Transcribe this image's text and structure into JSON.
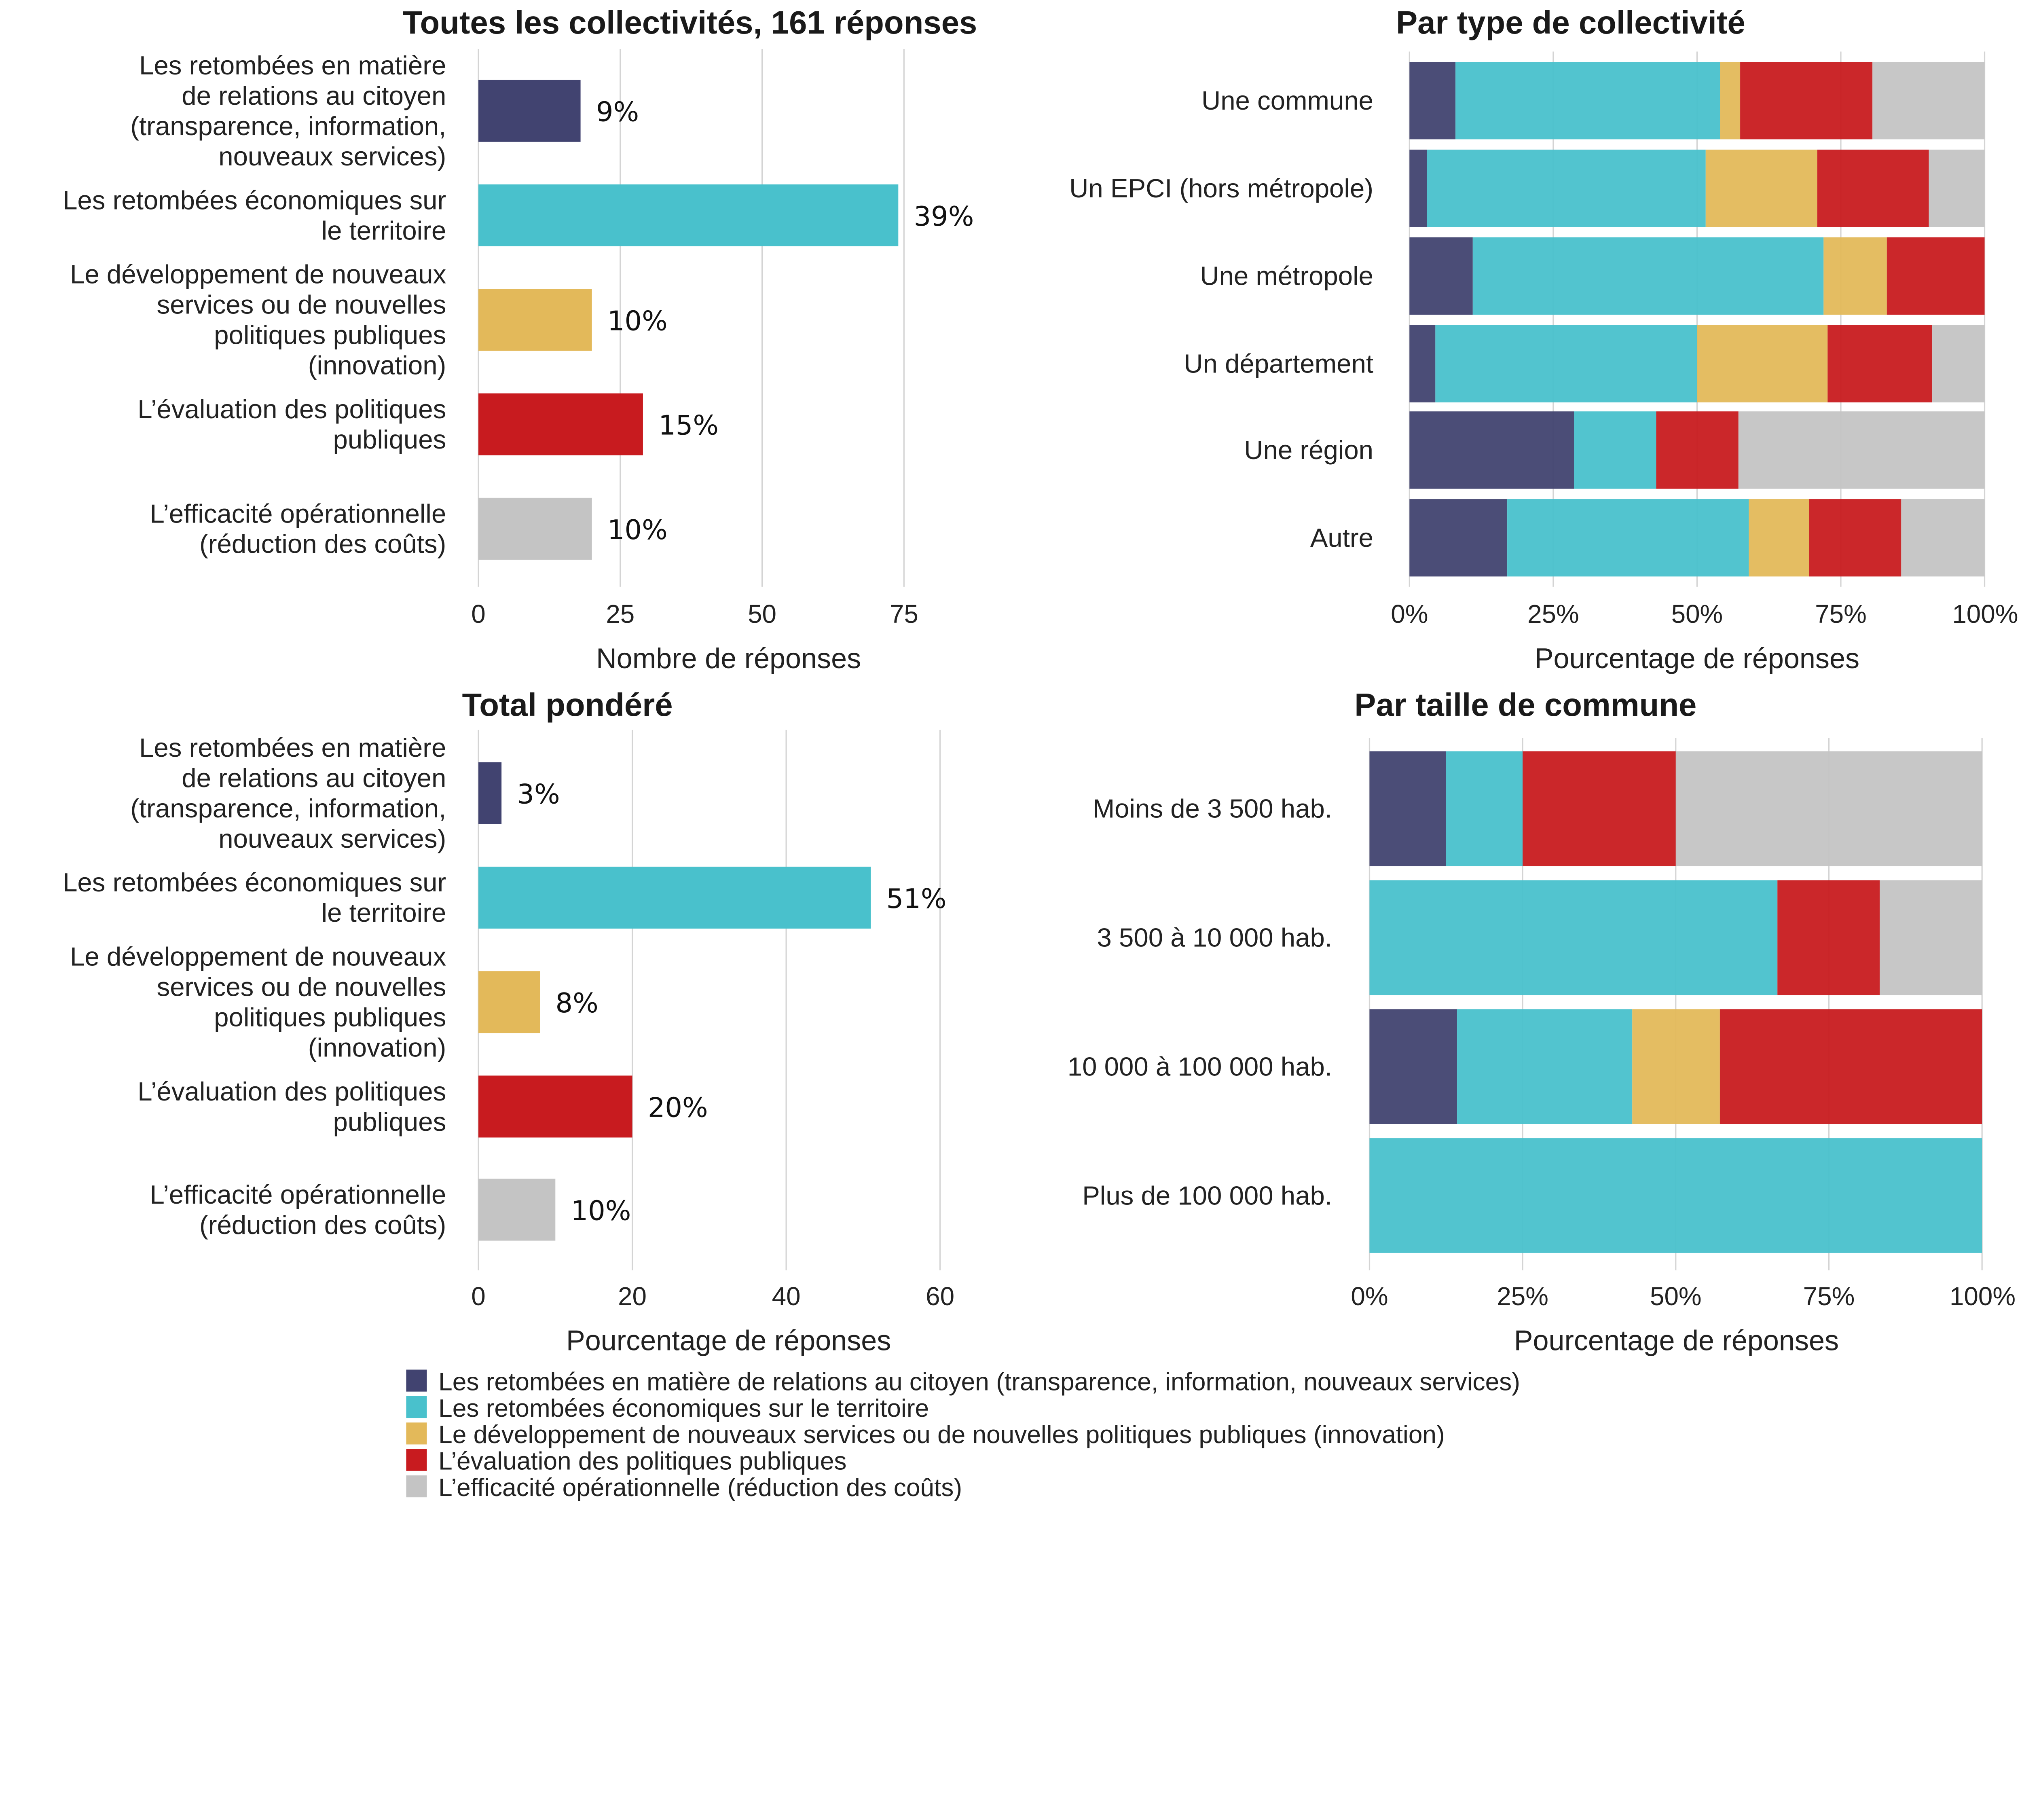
{
  "colors": {
    "citoyen": "#414370",
    "economie": "#49c1cc",
    "innovation": "#e3b95a",
    "evaluation": "#c81b1f",
    "efficacite": "#c4c4c4",
    "grid": "#d4d4d4"
  },
  "chart_data": [
    {
      "type": "bar",
      "orientation": "horizontal",
      "title": "Toutes les collectivités, 161 réponses",
      "xlabel": "Nombre de réponses",
      "categories": [
        [
          "Les retombées en matière",
          "de relations au citoyen",
          "(transparence, information,",
          "nouveaux services)"
        ],
        [
          "Les retombées économiques sur",
          "le territoire"
        ],
        [
          "Le développement de nouveaux",
          "services ou de nouvelles",
          "politiques publiques",
          "(innovation)"
        ],
        [
          "L’évaluation des politiques",
          "publiques"
        ],
        [
          "L’efficacité opérationnelle",
          "(réduction des coûts)"
        ]
      ],
      "values": [
        18,
        74,
        20,
        29,
        20
      ],
      "data_labels": [
        "9%",
        "39%",
        "10%",
        "15%",
        "10%"
      ],
      "xlim": [
        0,
        88
      ],
      "xticks": [
        0,
        25,
        50,
        75
      ],
      "xtick_labels": [
        "0",
        "25",
        "50",
        "75"
      ],
      "grid": true
    },
    {
      "type": "bar",
      "orientation": "horizontal",
      "stacked": true,
      "title": "Par type de collectivité",
      "xlabel": "Pourcentage de réponses",
      "categories": [
        "Une commune",
        "Un EPCI (hors métropole)",
        "Une métropole",
        "Un département",
        "Une région",
        "Autre"
      ],
      "series": [
        {
          "values": [
            8,
            3,
            11,
            4.5,
            28.6,
            17
          ]
        },
        {
          "values": [
            46,
            48.5,
            61,
            45.5,
            14.3,
            42
          ]
        },
        {
          "values": [
            3.5,
            19.4,
            11,
            22.7,
            0,
            10.5
          ]
        },
        {
          "values": [
            23,
            19.4,
            17,
            18.2,
            14.3,
            16
          ]
        },
        {
          "values": [
            19.5,
            9.7,
            0,
            9.1,
            42.8,
            14.5
          ]
        }
      ],
      "xlim": [
        0,
        100
      ],
      "xticks": [
        0,
        25,
        50,
        75,
        100
      ],
      "xtick_labels": [
        "0%",
        "25%",
        "50%",
        "75%",
        "100%"
      ],
      "grid": true
    },
    {
      "type": "bar",
      "orientation": "horizontal",
      "title": "Total pondéré",
      "xlabel": "Pourcentage de réponses",
      "categories": [
        [
          "Les retombées en matière",
          "de relations au citoyen",
          "(transparence, information,",
          "nouveaux services)"
        ],
        [
          "Les retombées économiques sur",
          "le territoire"
        ],
        [
          "Le développement de nouveaux",
          "services ou de nouvelles",
          "politiques publiques",
          "(innovation)"
        ],
        [
          "L’évaluation des politiques",
          "publiques"
        ],
        [
          "L’efficacité opérationnelle",
          "(réduction des coûts)"
        ]
      ],
      "values": [
        3,
        51,
        8,
        20,
        10
      ],
      "data_labels": [
        "3%",
        "51%",
        "8%",
        "20%",
        "10%"
      ],
      "xlim": [
        0,
        66
      ],
      "xticks": [
        0,
        20,
        40,
        60
      ],
      "xtick_labels": [
        "0",
        "20",
        "40",
        "60"
      ],
      "grid": true
    },
    {
      "type": "bar",
      "orientation": "horizontal",
      "stacked": true,
      "title": "Par taille de commune",
      "xlabel": "Pourcentage de réponses",
      "categories": [
        "Moins de 3 500 hab.",
        "3 500 à 10 000 hab.",
        "10 000 à 100 000 hab.",
        "Plus de 100 000 hab."
      ],
      "series": [
        {
          "values": [
            12.5,
            0,
            14.3,
            0
          ]
        },
        {
          "values": [
            12.5,
            66.6,
            28.6,
            100
          ]
        },
        {
          "values": [
            0,
            0,
            14.3,
            0
          ]
        },
        {
          "values": [
            25,
            16.7,
            42.8,
            0
          ]
        },
        {
          "values": [
            50,
            16.7,
            0,
            0
          ]
        }
      ],
      "xlim": [
        0,
        100
      ],
      "xticks": [
        0,
        25,
        50,
        75,
        100
      ],
      "xtick_labels": [
        "0%",
        "25%",
        "50%",
        "75%",
        "100%"
      ],
      "grid": true
    }
  ],
  "legend": {
    "placement": "bottom",
    "items": [
      {
        "key": "citoyen",
        "label": "Les retombées en matière de relations au citoyen (transparence, information, nouveaux services)"
      },
      {
        "key": "economie",
        "label": "Les retombées économiques sur le territoire"
      },
      {
        "key": "innovation",
        "label": "Le développement de nouveaux services ou de nouvelles politiques publiques (innovation)"
      },
      {
        "key": "evaluation",
        "label": "L’évaluation des politiques publiques"
      },
      {
        "key": "efficacite",
        "label": "L’efficacité opérationnelle (réduction des coûts)"
      }
    ]
  }
}
